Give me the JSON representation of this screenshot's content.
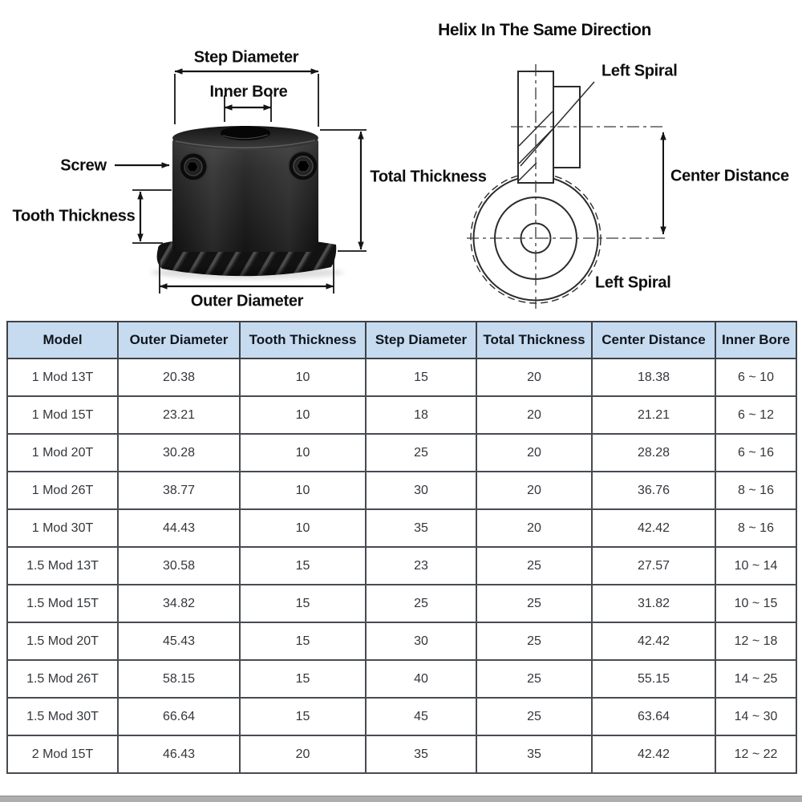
{
  "photo_diagram": {
    "labels": {
      "step_diameter": "Step Diameter",
      "inner_bore": "Inner Bore",
      "screw": "Screw",
      "tooth_thickness": "Tooth Thickness",
      "total_thickness": "Total Thickness",
      "outer_diameter": "Outer Diameter"
    }
  },
  "helix_diagram": {
    "title": "Helix In The Same Direction",
    "left_spiral_top": "Left Spiral",
    "center_distance": "Center Distance",
    "left_spiral_bottom": "Left Spiral"
  },
  "table": {
    "header_bg": "#c6dbef",
    "border_color": "#474b51",
    "columns": [
      "Model",
      "Outer Diameter",
      "Tooth Thickness",
      "Step Diameter",
      "Total Thickness",
      "Center Distance",
      "Inner Bore"
    ],
    "column_keys": [
      "model",
      "outer_diameter",
      "tooth_thickness",
      "step_diameter",
      "total_thickness",
      "center_distance",
      "inner_bore"
    ],
    "rows": [
      [
        "1 Mod 13T",
        "20.38",
        "10",
        "15",
        "20",
        "18.38",
        "6 ~ 10"
      ],
      [
        "1 Mod 15T",
        "23.21",
        "10",
        "18",
        "20",
        "21.21",
        "6 ~ 12"
      ],
      [
        "1 Mod 20T",
        "30.28",
        "10",
        "25",
        "20",
        "28.28",
        "6 ~ 16"
      ],
      [
        "1 Mod 26T",
        "38.77",
        "10",
        "30",
        "20",
        "36.76",
        "8 ~ 16"
      ],
      [
        "1 Mod 30T",
        "44.43",
        "10",
        "35",
        "20",
        "42.42",
        "8 ~ 16"
      ],
      [
        "1.5 Mod 13T",
        "30.58",
        "15",
        "23",
        "25",
        "27.57",
        "10 ~ 14"
      ],
      [
        "1.5 Mod 15T",
        "34.82",
        "15",
        "25",
        "25",
        "31.82",
        "10 ~ 15"
      ],
      [
        "1.5 Mod 20T",
        "45.43",
        "15",
        "30",
        "25",
        "42.42",
        "12 ~ 18"
      ],
      [
        "1.5 Mod 26T",
        "58.15",
        "15",
        "40",
        "25",
        "55.15",
        "14 ~ 25"
      ],
      [
        "1.5 Mod 30T",
        "66.64",
        "15",
        "45",
        "25",
        "63.64",
        "14 ~ 30"
      ],
      [
        "2 Mod 15T",
        "46.43",
        "20",
        "35",
        "35",
        "42.42",
        "12 ~ 22"
      ]
    ]
  }
}
